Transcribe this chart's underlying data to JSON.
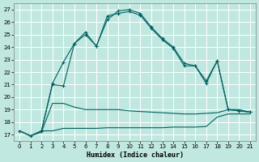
{
  "xlabel": "Humidex (Indice chaleur)",
  "xlim": [
    -0.5,
    21.5
  ],
  "ylim": [
    16.5,
    27.5
  ],
  "yticks": [
    17,
    18,
    19,
    20,
    21,
    22,
    23,
    24,
    25,
    26,
    27
  ],
  "xticks": [
    0,
    1,
    2,
    3,
    4,
    5,
    6,
    7,
    8,
    9,
    10,
    11,
    12,
    13,
    14,
    15,
    16,
    17,
    18,
    19,
    20,
    21
  ],
  "bg_color": "#c0e8e0",
  "grid_color": "#ffffff",
  "line_color": "#006060",
  "line1_x": [
    0,
    1,
    2,
    3,
    4,
    5,
    6,
    7,
    8,
    9,
    10,
    11,
    12,
    13,
    14,
    15,
    16,
    17,
    18,
    19,
    20,
    21
  ],
  "line1_y": [
    17.3,
    16.9,
    17.2,
    19.5,
    19.5,
    19.2,
    19.0,
    19.0,
    19.0,
    19.0,
    18.9,
    18.85,
    18.8,
    18.75,
    18.7,
    18.65,
    18.65,
    18.7,
    18.75,
    19.0,
    19.0,
    18.8
  ],
  "line2_x": [
    0,
    1,
    2,
    3,
    4,
    5,
    6,
    7,
    8,
    9,
    10,
    11,
    12,
    13,
    14,
    15,
    16,
    17,
    18,
    19,
    20,
    21
  ],
  "line2_y": [
    17.3,
    16.9,
    17.3,
    17.3,
    17.5,
    17.5,
    17.5,
    17.5,
    17.55,
    17.55,
    17.55,
    17.55,
    17.55,
    17.55,
    17.6,
    17.6,
    17.6,
    17.65,
    18.4,
    18.65,
    18.65,
    18.65
  ],
  "line3_x": [
    0,
    1,
    2,
    3,
    4,
    5,
    6,
    7,
    8,
    9,
    10,
    11,
    12,
    13,
    14,
    15,
    16,
    17,
    18,
    19,
    20,
    21
  ],
  "line3_y": [
    17.3,
    16.9,
    17.3,
    21.0,
    20.9,
    24.3,
    25.0,
    24.1,
    26.2,
    26.9,
    27.0,
    26.7,
    25.6,
    24.7,
    24.0,
    22.7,
    22.5,
    21.3,
    22.9,
    19.0,
    18.9,
    18.8
  ],
  "line4_x": [
    2,
    3,
    4,
    5,
    6,
    7,
    8,
    9,
    10,
    11,
    12,
    13,
    14,
    15,
    16,
    17,
    18,
    19,
    20,
    21
  ],
  "line4_y": [
    17.3,
    21.1,
    22.8,
    24.3,
    25.2,
    24.05,
    26.5,
    26.7,
    26.85,
    26.55,
    25.5,
    24.6,
    23.9,
    22.5,
    22.5,
    21.1,
    22.9,
    19.0,
    18.9,
    18.8
  ]
}
